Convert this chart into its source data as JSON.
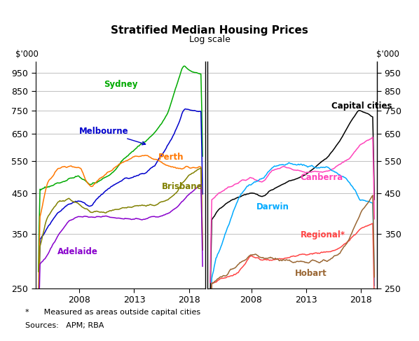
{
  "title": "Stratified Median Housing Prices",
  "subtitle": "Log scale",
  "ylabel_left": "$'000",
  "ylabel_right": "$'000",
  "footnote1": "*      Measured as areas outside capital cities",
  "footnote2": "Sources:   APM; RBA",
  "ylim": [
    250,
    1020
  ],
  "yticks": [
    250,
    350,
    450,
    550,
    650,
    750,
    850,
    950
  ],
  "xticks": [
    2008,
    2013,
    2018
  ],
  "xlim": [
    2004.0,
    2019.5
  ],
  "colors": {
    "Sydney": "#00aa00",
    "Melbourne": "#0000cc",
    "Perth": "#ff7700",
    "Brisbane": "#808000",
    "Adelaide": "#8800cc",
    "Capital_cities": "#000000",
    "Canberra": "#ff44bb",
    "Darwin": "#00aaff",
    "Regional": "#ff4444",
    "Hobart": "#996633"
  }
}
